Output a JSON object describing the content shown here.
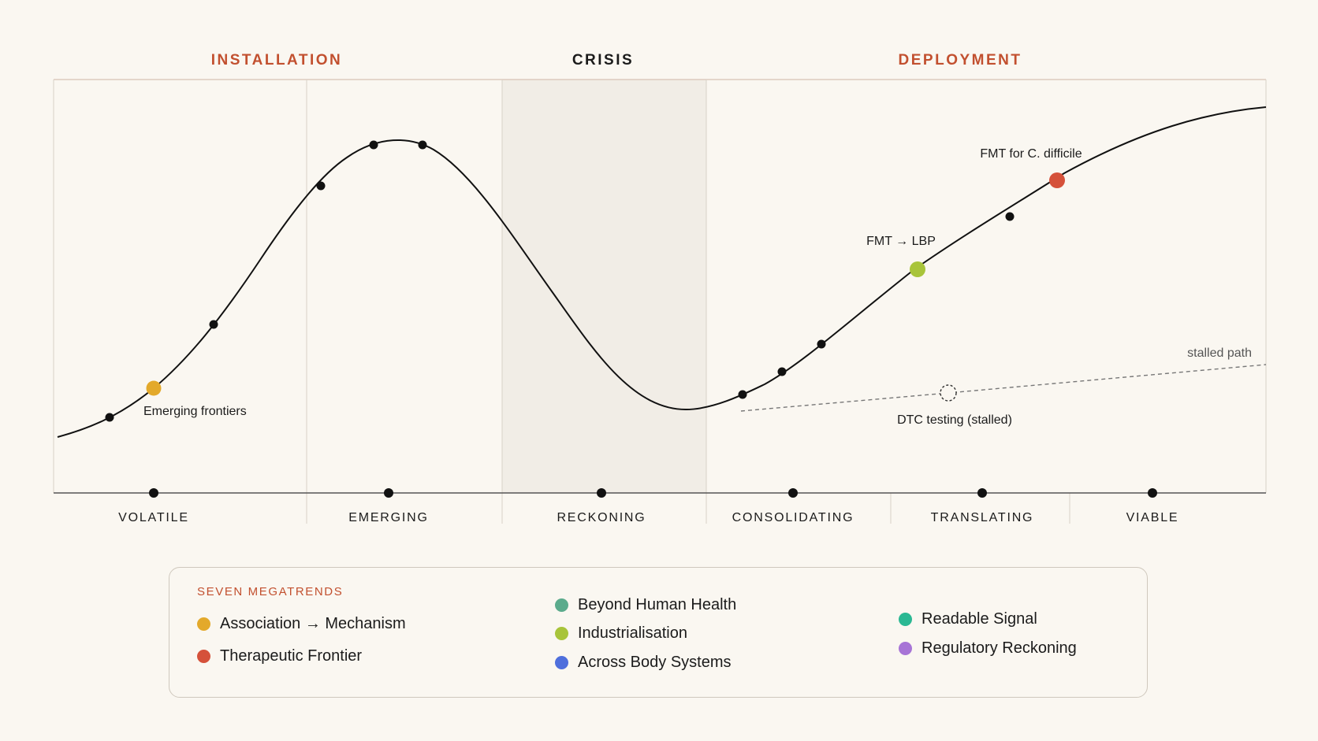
{
  "phases": [
    {
      "id": "installation",
      "label": "INSTALLATION",
      "color": "#c2502f"
    },
    {
      "id": "crisis",
      "label": "CRISIS",
      "color": "#1b1b1b"
    },
    {
      "id": "deployment",
      "label": "DEPLOYMENT",
      "color": "#c2502f"
    }
  ],
  "stages": [
    "VOLATILE",
    "EMERGING",
    "RECKONING",
    "CONSOLIDATING",
    "TRANSLATING",
    "VIABLE"
  ],
  "markers": [
    {
      "id": "emerging-frontiers",
      "label": "Emerging frontiers",
      "color": "#e3a92b"
    },
    {
      "id": "fmt-lbp",
      "label": "FMT → LBP",
      "color": "#a8c43a"
    },
    {
      "id": "fmt-c-difficile",
      "label": "FMT for C. difficile",
      "color": "#d5513a"
    }
  ],
  "stalled": {
    "path_label": "stalled path",
    "marker_label": "DTC testing  (stalled)"
  },
  "legend": {
    "title": "SEVEN MEGATRENDS",
    "items": [
      {
        "label": "Association → Mechanism",
        "color": "#e3a92b"
      },
      {
        "label": "Therapeutic Frontier",
        "color": "#d5513a"
      },
      {
        "label": "Beyond Human Health",
        "color": "#5bab8c"
      },
      {
        "label": "Industrialisation",
        "color": "#a8c43a"
      },
      {
        "label": "Across Body Systems",
        "color": "#4f6fdc"
      },
      {
        "label": "Readable Signal",
        "color": "#2bb893"
      },
      {
        "label": "Regulatory Reckoning",
        "color": "#a774d6"
      }
    ]
  },
  "colors": {
    "background": "#faf7f1",
    "crisis_band": "#f1ede6",
    "axis": "#555555"
  }
}
